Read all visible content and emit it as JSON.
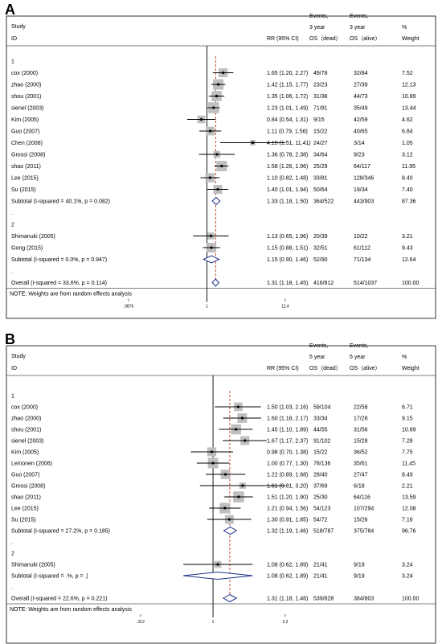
{
  "chart_data": [
    {
      "type": "forest",
      "panel_label": "A",
      "header": {
        "study": "Study",
        "id": "ID",
        "rr": "RR (95% CI)",
        "events1_l1": "Events,",
        "events1_l2": "3 year",
        "events1_l3": "OS（dead）",
        "events2_l1": "Events,",
        "events2_l2": "3 year",
        "events2_l3": "OS（alive）",
        "weight_l1": "%",
        "weight_l2": "Weight"
      },
      "x_ticks": [
        ".0876",
        "1",
        "11.4"
      ],
      "x_tick_values": [
        0.0876,
        1,
        11.4
      ],
      "overall_rr": 1.31,
      "note": "NOTE: Weights are from random effects analysis",
      "rows": [
        {
          "kind": "group",
          "label": "1"
        },
        {
          "kind": "study",
          "label": "cox (2000)",
          "rr": 1.65,
          "lo": 1.2,
          "hi": 2.27,
          "ci": "1.65 (1.20, 2.27)",
          "e1": "49/78",
          "e2": "32/84",
          "w": "7.52",
          "wnum": 7.52
        },
        {
          "kind": "study",
          "label": "zhao (2000)",
          "rr": 1.42,
          "lo": 1.15,
          "hi": 1.77,
          "ci": "1.42 (1.15, 1.77)",
          "e1": "23/23",
          "e2": "27/39",
          "w": "12.13",
          "wnum": 12.13
        },
        {
          "kind": "study",
          "label": "shou (2001)",
          "rr": 1.35,
          "lo": 1.06,
          "hi": 1.72,
          "ci": "1.35 (1.06, 1.72)",
          "e1": "31/38",
          "e2": "44/73",
          "w": "10.89",
          "wnum": 10.89
        },
        {
          "kind": "study",
          "label": "sienel (2003)",
          "rr": 1.23,
          "lo": 1.01,
          "hi": 1.49,
          "ci": "1.23 (1.01, 1.49)",
          "e1": "71/81",
          "e2": "35/49",
          "w": "13.44",
          "wnum": 13.44
        },
        {
          "kind": "study",
          "label": "Kim (2005)",
          "rr": 0.84,
          "lo": 0.54,
          "hi": 1.31,
          "ci": "0.84 (0.54, 1.31)",
          "e1": "9/15",
          "e2": "42/59",
          "w": "4.62",
          "wnum": 4.62
        },
        {
          "kind": "study",
          "label": "Guo (2007)",
          "rr": 1.11,
          "lo": 0.79,
          "hi": 1.56,
          "ci": "1.11 (0.79, 1.56)",
          "e1": "15/22",
          "e2": "40/65",
          "w": "6.84",
          "wnum": 6.84
        },
        {
          "kind": "study",
          "label": "Chen (2008)",
          "rr": 4.15,
          "lo": 1.51,
          "hi": 11.41,
          "ci": "4.15 (1.51, 11.41)",
          "e1": "24/27",
          "e2": "3/14",
          "w": "1.05",
          "wnum": 1.05
        },
        {
          "kind": "study",
          "label": "Grossi (2008)",
          "rr": 1.36,
          "lo": 0.78,
          "hi": 2.38,
          "ci": "1.36 (0.78, 2.38)",
          "e1": "34/64",
          "e2": "9/23",
          "w": "3.12",
          "wnum": 3.12
        },
        {
          "kind": "study",
          "label": "shao (2011)",
          "rr": 1.58,
          "lo": 1.26,
          "hi": 1.96,
          "ci": "1.58 (1.26, 1.96)",
          "e1": "25/29",
          "e2": "64/117",
          "w": "11.95",
          "wnum": 11.95
        },
        {
          "kind": "study",
          "label": "Lee (2015)",
          "rr": 1.1,
          "lo": 0.82,
          "hi": 1.48,
          "ci": "1.10 (0.82, 1.48)",
          "e1": "33/81",
          "e2": "128/346",
          "w": "8.40",
          "wnum": 8.4
        },
        {
          "kind": "study",
          "label": "Su (2015)",
          "rr": 1.4,
          "lo": 1.01,
          "hi": 1.94,
          "ci": "1.40 (1.01, 1.94)",
          "e1": "50/64",
          "e2": "19/34",
          "w": "7.40",
          "wnum": 7.4
        },
        {
          "kind": "subtotal",
          "label": "Subtotal  (I-squared = 40.1%, p = 0.082)",
          "rr": 1.33,
          "lo": 1.18,
          "hi": 1.5,
          "ci": "1.33 (1.18, 1.50)",
          "e1": "364/522",
          "e2": "443/903",
          "w": "87.36"
        },
        {
          "kind": "dot",
          "label": "."
        },
        {
          "kind": "group",
          "label": "2"
        },
        {
          "kind": "study",
          "label": "Shimanuki (2005)",
          "rr": 1.13,
          "lo": 0.65,
          "hi": 1.96,
          "ci": "1.13 (0.65, 1.96)",
          "e1": "20/39",
          "e2": "10/22",
          "w": "3.21",
          "wnum": 3.21
        },
        {
          "kind": "study",
          "label": "Gong (2015)",
          "rr": 1.15,
          "lo": 0.88,
          "hi": 1.51,
          "ci": "1.15 (0.88, 1.51)",
          "e1": "32/51",
          "e2": "61/112",
          "w": "9.43",
          "wnum": 9.43
        },
        {
          "kind": "subtotal",
          "label": "Subtotal  (I-squared = 0.0%, p = 0.947)",
          "rr": 1.15,
          "lo": 0.9,
          "hi": 1.46,
          "ci": "1.15 (0.90, 1.46)",
          "e1": "52/90",
          "e2": "71/134",
          "w": "12.64"
        },
        {
          "kind": "dot",
          "label": "."
        },
        {
          "kind": "overall",
          "label": "Overall  (I-squared = 33.6%, p = 0.114)",
          "rr": 1.31,
          "lo": 1.18,
          "hi": 1.45,
          "ci": "1.31 (1.18, 1.45)",
          "e1": "416/612",
          "e2": "514/1037",
          "w": "100.00"
        }
      ]
    },
    {
      "type": "forest",
      "panel_label": "B",
      "header": {
        "study": "Study",
        "id": "ID",
        "rr": "RR (95% CI)",
        "events1_l1": "Events,",
        "events1_l2": "5 year",
        "events1_l3": "OS（dead）",
        "events2_l1": "Events,",
        "events2_l2": "5 year",
        "events2_l3": "OS（alive）",
        "weight_l1": "%",
        "weight_l2": "Weight"
      },
      "x_ticks": [
        ".312",
        "1",
        "3.2"
      ],
      "x_tick_values": [
        0.312,
        1,
        3.2
      ],
      "overall_rr": 1.31,
      "note": "NOTE: Weights are from random effects analysis",
      "rows": [
        {
          "kind": "group",
          "label": "1"
        },
        {
          "kind": "study",
          "label": "cox (2000)",
          "rr": 1.5,
          "lo": 1.03,
          "hi": 2.16,
          "ci": "1.50 (1.03, 2.16)",
          "e1": "59/104",
          "e2": "22/58",
          "w": "6.71",
          "wnum": 6.71
        },
        {
          "kind": "study",
          "label": "zhao (2000)",
          "rr": 1.6,
          "lo": 1.18,
          "hi": 2.17,
          "ci": "1.60 (1.18, 2.17)",
          "e1": "33/34",
          "e2": "17/28",
          "w": "9.15",
          "wnum": 9.15
        },
        {
          "kind": "study",
          "label": "shou (2001)",
          "rr": 1.45,
          "lo": 1.1,
          "hi": 1.89,
          "ci": "1.45 (1.10, 1.89)",
          "e1": "44/55",
          "e2": "31/56",
          "w": "10.89",
          "wnum": 10.89
        },
        {
          "kind": "study",
          "label": "sienel (2003)",
          "rr": 1.67,
          "lo": 1.17,
          "hi": 2.37,
          "ci": "1.67 (1.17, 2.37)",
          "e1": "91/102",
          "e2": "15/28",
          "w": "7.28",
          "wnum": 7.28
        },
        {
          "kind": "study",
          "label": "Kim (2005)",
          "rr": 0.98,
          "lo": 0.7,
          "hi": 1.38,
          "ci": "0.98 (0.70, 1.38)",
          "e1": "15/22",
          "e2": "36/52",
          "w": "7.75",
          "wnum": 7.75
        },
        {
          "kind": "study",
          "label": "Leinonen (2006)",
          "rr": 1.0,
          "lo": 0.77,
          "hi": 1.3,
          "ci": "1.00 (0.77, 1.30)",
          "e1": "78/136",
          "e2": "35/61",
          "w": "11.45",
          "wnum": 11.45
        },
        {
          "kind": "study",
          "label": "Guo (2007)",
          "rr": 1.22,
          "lo": 0.89,
          "hi": 1.68,
          "ci": "1.22 (0.89, 1.68)",
          "e1": "28/40",
          "e2": "27/47",
          "w": "8.49",
          "wnum": 8.49
        },
        {
          "kind": "study",
          "label": "Grossi (2008)",
          "rr": 1.61,
          "lo": 0.81,
          "hi": 3.2,
          "ci": "1.61 (0.81, 3.20)",
          "e1": "37/69",
          "e2": "6/18",
          "w": "2.21",
          "wnum": 2.21
        },
        {
          "kind": "study",
          "label": "shao (2011)",
          "rr": 1.51,
          "lo": 1.2,
          "hi": 1.9,
          "ci": "1.51 (1.20, 1.90)",
          "e1": "25/30",
          "e2": "64/116",
          "w": "13.59",
          "wnum": 13.59
        },
        {
          "kind": "study",
          "label": "Lee (2015)",
          "rr": 1.21,
          "lo": 0.94,
          "hi": 1.56,
          "ci": "1.21 (0.94, 1.56)",
          "e1": "54/123",
          "e2": "107/294",
          "w": "12.08",
          "wnum": 12.08
        },
        {
          "kind": "study",
          "label": "Su (2015)",
          "rr": 1.3,
          "lo": 0.91,
          "hi": 1.85,
          "ci": "1.30 (0.91, 1.85)",
          "e1": "54/72",
          "e2": "15/26",
          "w": "7.16",
          "wnum": 7.16
        },
        {
          "kind": "subtotal",
          "label": "Subtotal  (I-squared = 27.2%, p = 0.185)",
          "rr": 1.32,
          "lo": 1.19,
          "hi": 1.46,
          "ci": "1.32 (1.19, 1.46)",
          "e1": "518/787",
          "e2": "375/784",
          "w": "96.76"
        },
        {
          "kind": "dot",
          "label": "."
        },
        {
          "kind": "group",
          "label": "2"
        },
        {
          "kind": "study",
          "label": "Shimanuki (2005)",
          "rr": 1.08,
          "lo": 0.62,
          "hi": 1.89,
          "ci": "1.08 (0.62, 1.89)",
          "e1": "21/41",
          "e2": "9/19",
          "w": "3.24",
          "wnum": 3.24
        },
        {
          "kind": "subtotal",
          "label": "Subtotal  (I-squared = .%, p = .)",
          "rr": 1.08,
          "lo": 0.62,
          "hi": 1.89,
          "ci": "1.08 (0.62, 1.89)",
          "e1": "21/41",
          "e2": "9/19",
          "w": "3.24"
        },
        {
          "kind": "dot",
          "label": "."
        },
        {
          "kind": "overall",
          "label": "Overall  (I-squared = 22.6%, p = 0.221)",
          "rr": 1.31,
          "lo": 1.18,
          "hi": 1.46,
          "ci": "1.31 (1.18, 1.46)",
          "e1": "539/828",
          "e2": "384/803",
          "w": "100.00"
        }
      ]
    }
  ]
}
